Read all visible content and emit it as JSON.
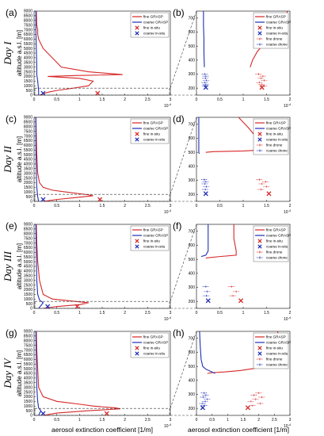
{
  "figure": {
    "x_axis_label": "aerosol extinction coefficient [1/m]",
    "y_axis_label": "altitude a.s.l. [m]",
    "colors": {
      "fine": "#d62728",
      "coarse": "#1f2fb4"
    }
  },
  "chart_data": [
    {
      "panel": "(a)",
      "day": "Day I",
      "type": "line",
      "x_multiplier": "10^-4",
      "xlim": [
        0,
        3
      ],
      "ylim": [
        0,
        9000
      ],
      "xticks": [
        0,
        0.5,
        1,
        1.5,
        2,
        2.5,
        3
      ],
      "yticks": [
        0,
        500,
        1000,
        1500,
        2000,
        2500,
        3000,
        3500,
        4000,
        4500,
        5000,
        5500,
        6000,
        6500,
        7000,
        7500,
        8000,
        8500,
        9000
      ],
      "legend": [
        "fine GRASP",
        "coarse GRASP",
        "fine in-situ",
        "coarse in-situ"
      ],
      "series": [
        {
          "name": "fine GRASP",
          "kind": "line",
          "x": [
            0.05,
            0.06,
            0.08,
            0.08,
            0.1,
            0.2,
            0.6,
            1.2,
            1.95,
            0.9,
            0.3,
            1.0,
            1.3,
            1.2,
            0.8,
            0.5,
            0.3,
            0.2,
            0.12
          ],
          "y": [
            9000,
            7500,
            7000,
            6500,
            6000,
            5000,
            3000,
            2500,
            2200,
            2100,
            2000,
            1800,
            1500,
            1000,
            700,
            500,
            300,
            150,
            0
          ]
        },
        {
          "name": "coarse GRASP",
          "kind": "line",
          "x": [
            0.04,
            0.04,
            0.05,
            0.06,
            0.06,
            0.08,
            0.1,
            0.1
          ],
          "y": [
            9000,
            7000,
            5000,
            3000,
            2200,
            1500,
            500,
            0
          ]
        },
        {
          "name": "fine in-situ",
          "kind": "marker",
          "x": [
            1.4
          ],
          "y": [
            200
          ]
        },
        {
          "name": "coarse in-situ",
          "kind": "marker",
          "x": [
            0.2
          ],
          "y": [
            200
          ]
        }
      ]
    },
    {
      "panel": "(b)",
      "type": "line",
      "x_multiplier": "10^-4",
      "xlim": [
        0,
        2
      ],
      "ylim": [
        150,
        750
      ],
      "xticks": [
        0,
        0.5,
        1,
        1.5,
        2
      ],
      "yticks": [
        200,
        300,
        400,
        500,
        600,
        700
      ],
      "legend": [
        "fine GRASP",
        "coarse GRASP",
        "fine in-situ",
        "coarse in-situ",
        "fine drone",
        "coarse drone"
      ],
      "series": [
        {
          "name": "fine GRASP",
          "kind": "line",
          "x": [
            1.95,
            1.8,
            1.6,
            1.45,
            1.3,
            1.2,
            1.15
          ],
          "y": [
            750,
            650,
            580,
            520,
            460,
            400,
            350
          ]
        },
        {
          "name": "coarse GRASP",
          "kind": "line",
          "x": [
            0.15,
            0.15,
            0.16,
            0.16,
            0.17
          ],
          "y": [
            750,
            650,
            550,
            450,
            350
          ]
        },
        {
          "name": "fine in-situ",
          "kind": "marker",
          "x": [
            1.4
          ],
          "y": [
            205
          ]
        },
        {
          "name": "coarse in-situ",
          "kind": "marker",
          "x": [
            0.2
          ],
          "y": [
            205
          ]
        },
        {
          "name": "fine drone",
          "kind": "errorbar",
          "x": [
            1.33,
            1.42,
            1.38,
            1.45,
            1.35,
            1.4,
            1.45
          ],
          "y": [
            300,
            285,
            270,
            255,
            240,
            225,
            215
          ]
        },
        {
          "name": "coarse drone",
          "kind": "errorbar",
          "x": [
            0.18,
            0.2,
            0.19,
            0.21,
            0.18,
            0.2,
            0.19
          ],
          "y": [
            300,
            285,
            270,
            255,
            240,
            225,
            215
          ]
        }
      ]
    },
    {
      "panel": "(c)",
      "day": "Day II",
      "type": "line",
      "x_multiplier": "10^-4",
      "xlim": [
        0,
        3
      ],
      "ylim": [
        0,
        9000
      ],
      "xticks": [
        0,
        0.5,
        1,
        1.5,
        2,
        2.5,
        3
      ],
      "yticks": [
        0,
        500,
        1000,
        1500,
        2000,
        2500,
        3000,
        3500,
        4000,
        4500,
        5000,
        5500,
        6000,
        6500,
        7000,
        7500,
        8000,
        8500,
        9000
      ],
      "legend": [
        "fine GRASP",
        "coarse GRASP",
        "fine in-situ",
        "coarse in-situ"
      ],
      "series": [
        {
          "name": "fine GRASP",
          "kind": "line",
          "x": [
            0.04,
            0.05,
            0.06,
            0.08,
            0.12,
            0.2,
            0.4,
            0.7,
            1.2,
            1.3,
            0.9,
            0.5,
            0.2
          ],
          "y": [
            9000,
            7000,
            5000,
            3000,
            2000,
            1500,
            1200,
            1000,
            700,
            600,
            400,
            200,
            0
          ]
        },
        {
          "name": "coarse GRASP",
          "kind": "line",
          "x": [
            0.04,
            0.04,
            0.05,
            0.06,
            0.08,
            0.1
          ],
          "y": [
            9000,
            6000,
            3000,
            1500,
            500,
            0
          ]
        },
        {
          "name": "fine in-situ",
          "kind": "marker",
          "x": [
            1.45
          ],
          "y": [
            200
          ]
        },
        {
          "name": "coarse in-situ",
          "kind": "marker",
          "x": [
            0.2
          ],
          "y": [
            200
          ]
        }
      ]
    },
    {
      "panel": "(d)",
      "type": "line",
      "x_multiplier": "10^-4",
      "xlim": [
        0,
        2
      ],
      "ylim": [
        150,
        750
      ],
      "xticks": [
        0,
        0.5,
        1,
        1.5,
        2
      ],
      "yticks": [
        200,
        300,
        400,
        500,
        600,
        700
      ],
      "legend": [
        "fine GRASP",
        "coarse GRASP",
        "fine in-situ",
        "coarse in-situ",
        "fine drone",
        "coarse drone"
      ],
      "series": [
        {
          "name": "fine GRASP",
          "kind": "line",
          "x": [
            0.9,
            1.1,
            1.3,
            1.45,
            1.3,
            1.0,
            0.35,
            0.2
          ],
          "y": [
            750,
            680,
            600,
            530,
            515,
            510,
            505,
            500
          ]
        },
        {
          "name": "coarse GRASP",
          "kind": "line",
          "x": [
            0.05,
            0.05,
            0.05,
            0.05,
            0.06
          ],
          "y": [
            750,
            650,
            550,
            500,
            490
          ]
        },
        {
          "name": "fine in-situ",
          "kind": "marker",
          "x": [
            1.55
          ],
          "y": [
            205
          ]
        },
        {
          "name": "coarse in-situ",
          "kind": "marker",
          "x": [
            0.2
          ],
          "y": [
            205
          ]
        },
        {
          "name": "fine drone",
          "kind": "errorbar",
          "x": [
            1.35,
            1.48,
            1.4,
            1.5,
            1.38
          ],
          "y": [
            305,
            290,
            275,
            255,
            235
          ]
        },
        {
          "name": "coarse drone",
          "kind": "errorbar",
          "x": [
            0.17,
            0.2,
            0.18,
            0.21,
            0.19
          ],
          "y": [
            305,
            290,
            275,
            255,
            235
          ]
        }
      ]
    },
    {
      "panel": "(e)",
      "day": "Day III",
      "type": "line",
      "x_multiplier": "10^-4",
      "xlim": [
        0,
        3
      ],
      "ylim": [
        0,
        9000
      ],
      "xticks": [
        0,
        0.5,
        1,
        1.5,
        2,
        2.5,
        3
      ],
      "yticks": [
        0,
        500,
        1000,
        1500,
        2000,
        2500,
        3000,
        3500,
        4000,
        4500,
        5000,
        5500,
        6000,
        6500,
        7000,
        7500,
        8000,
        8500,
        9000
      ],
      "legend": [
        "fine GRASP",
        "coarse GRASP",
        "fine in-situ",
        "coarse in-situ"
      ],
      "series": [
        {
          "name": "fine GRASP",
          "kind": "line",
          "x": [
            0.05,
            0.06,
            0.08,
            0.12,
            0.2,
            0.4,
            0.8,
            1.2,
            1.0,
            0.5,
            0.2
          ],
          "y": [
            9000,
            7000,
            5000,
            3000,
            1500,
            1000,
            800,
            600,
            400,
            200,
            0
          ]
        },
        {
          "name": "coarse GRASP",
          "kind": "line",
          "x": [
            0.04,
            0.05,
            0.06,
            0.08,
            0.12,
            0.2,
            0.1
          ],
          "y": [
            9000,
            6000,
            3000,
            1500,
            900,
            600,
            0
          ]
        },
        {
          "name": "fine in-situ",
          "kind": "marker",
          "x": [
            0.95
          ],
          "y": [
            200
          ]
        },
        {
          "name": "coarse in-situ",
          "kind": "marker",
          "x": [
            0.3
          ],
          "y": [
            200
          ]
        }
      ]
    },
    {
      "panel": "(f)",
      "type": "line",
      "x_multiplier": "10^-4",
      "xlim": [
        0,
        2
      ],
      "ylim": [
        150,
        750
      ],
      "xticks": [
        0,
        0.5,
        1,
        1.5,
        2
      ],
      "yticks": [
        200,
        300,
        400,
        500,
        600,
        700
      ],
      "legend": [
        "fine GRASP",
        "coarse GRASP",
        "fine in-situ",
        "coarse in-situ",
        "fine drone",
        "coarse drone"
      ],
      "series": [
        {
          "name": "fine GRASP",
          "kind": "line",
          "x": [
            0.8,
            0.8,
            0.85,
            0.85,
            0.5,
            0.2
          ],
          "y": [
            750,
            650,
            560,
            530,
            520,
            510
          ]
        },
        {
          "name": "coarse GRASP",
          "kind": "line",
          "x": [
            0.25,
            0.25,
            0.25,
            0.2,
            0.1
          ],
          "y": [
            750,
            650,
            560,
            530,
            520
          ]
        },
        {
          "name": "fine in-situ",
          "kind": "marker",
          "x": [
            0.95
          ],
          "y": [
            205
          ]
        },
        {
          "name": "coarse in-situ",
          "kind": "marker",
          "x": [
            0.25
          ],
          "y": [
            205
          ]
        },
        {
          "name": "fine drone",
          "kind": "errorbar",
          "x": [
            0.75,
            0.85,
            0.78
          ],
          "y": [
            305,
            270,
            240
          ]
        },
        {
          "name": "coarse drone",
          "kind": "errorbar",
          "x": [
            0.2,
            0.23,
            0.21
          ],
          "y": [
            305,
            270,
            240
          ]
        }
      ]
    },
    {
      "panel": "(g)",
      "day": "Day IV",
      "type": "line",
      "x_multiplier": "10^-4",
      "xlim": [
        0,
        3
      ],
      "ylim": [
        0,
        9000
      ],
      "xticks": [
        0,
        0.5,
        1,
        1.5,
        2,
        2.5,
        3
      ],
      "yticks": [
        0,
        500,
        1000,
        1500,
        2000,
        2500,
        3000,
        3500,
        4000,
        4500,
        5000,
        5500,
        6000,
        6500,
        7000,
        7500,
        8000,
        8500,
        9000
      ],
      "legend": [
        "fine GRASP",
        "coarse GRASP",
        "fine in-situ",
        "coarse in-situ"
      ],
      "series": [
        {
          "name": "fine GRASP",
          "kind": "line",
          "x": [
            0.05,
            0.06,
            0.08,
            0.1,
            0.2,
            0.5,
            1.0,
            1.3,
            1.8,
            1.9,
            1.2,
            0.5,
            0.2
          ],
          "y": [
            9000,
            7000,
            5000,
            3000,
            2000,
            1500,
            1200,
            1000,
            800,
            700,
            500,
            250,
            0
          ]
        },
        {
          "name": "coarse GRASP",
          "kind": "line",
          "x": [
            0.04,
            0.05,
            0.06,
            0.08,
            0.1,
            0.15,
            0.1
          ],
          "y": [
            9000,
            6000,
            3000,
            1500,
            800,
            500,
            0
          ]
        },
        {
          "name": "fine in-situ",
          "kind": "marker",
          "x": [
            1.6
          ],
          "y": [
            200
          ]
        },
        {
          "name": "coarse in-situ",
          "kind": "marker",
          "x": [
            0.2
          ],
          "y": [
            200
          ]
        }
      ]
    },
    {
      "panel": "(h)",
      "type": "line",
      "x_multiplier": "10^-4",
      "xlim": [
        0,
        3
      ],
      "ylim": [
        150,
        750
      ],
      "xticks": [
        0,
        0.5,
        1,
        1.5,
        2,
        2.5,
        3
      ],
      "yticks": [
        200,
        300,
        400,
        500,
        600,
        700
      ],
      "legend": [
        "fine GRASP",
        "coarse GRASP",
        "fine in-situ",
        "coarse in-situ",
        "fine drone",
        "coarse drone"
      ],
      "series": [
        {
          "name": "fine GRASP",
          "kind": "line",
          "x": [
            2.6,
            2.7,
            2.65,
            2.5,
            2.0,
            1.4,
            0.9,
            0.5,
            0.35
          ],
          "y": [
            750,
            680,
            600,
            520,
            490,
            470,
            460,
            455,
            450
          ]
        },
        {
          "name": "coarse GRASP",
          "kind": "line",
          "x": [
            0.1,
            0.12,
            0.15,
            0.2,
            0.3,
            0.5,
            0.6
          ],
          "y": [
            750,
            650,
            550,
            500,
            480,
            460,
            450
          ]
        },
        {
          "name": "fine in-situ",
          "kind": "marker",
          "x": [
            1.65
          ],
          "y": [
            205
          ]
        },
        {
          "name": "coarse in-situ",
          "kind": "marker",
          "x": [
            0.2
          ],
          "y": [
            205
          ]
        },
        {
          "name": "fine drone",
          "kind": "errorbar",
          "x": [
            2.0,
            1.85,
            2.1,
            1.9,
            1.75,
            2.05,
            1.8
          ],
          "y": [
            310,
            295,
            280,
            265,
            250,
            235,
            220
          ]
        },
        {
          "name": "coarse drone",
          "kind": "errorbar",
          "x": [
            0.25,
            0.3,
            0.22,
            0.35,
            0.28,
            0.2,
            0.26
          ],
          "y": [
            310,
            295,
            280,
            265,
            250,
            235,
            220
          ]
        }
      ]
    }
  ]
}
